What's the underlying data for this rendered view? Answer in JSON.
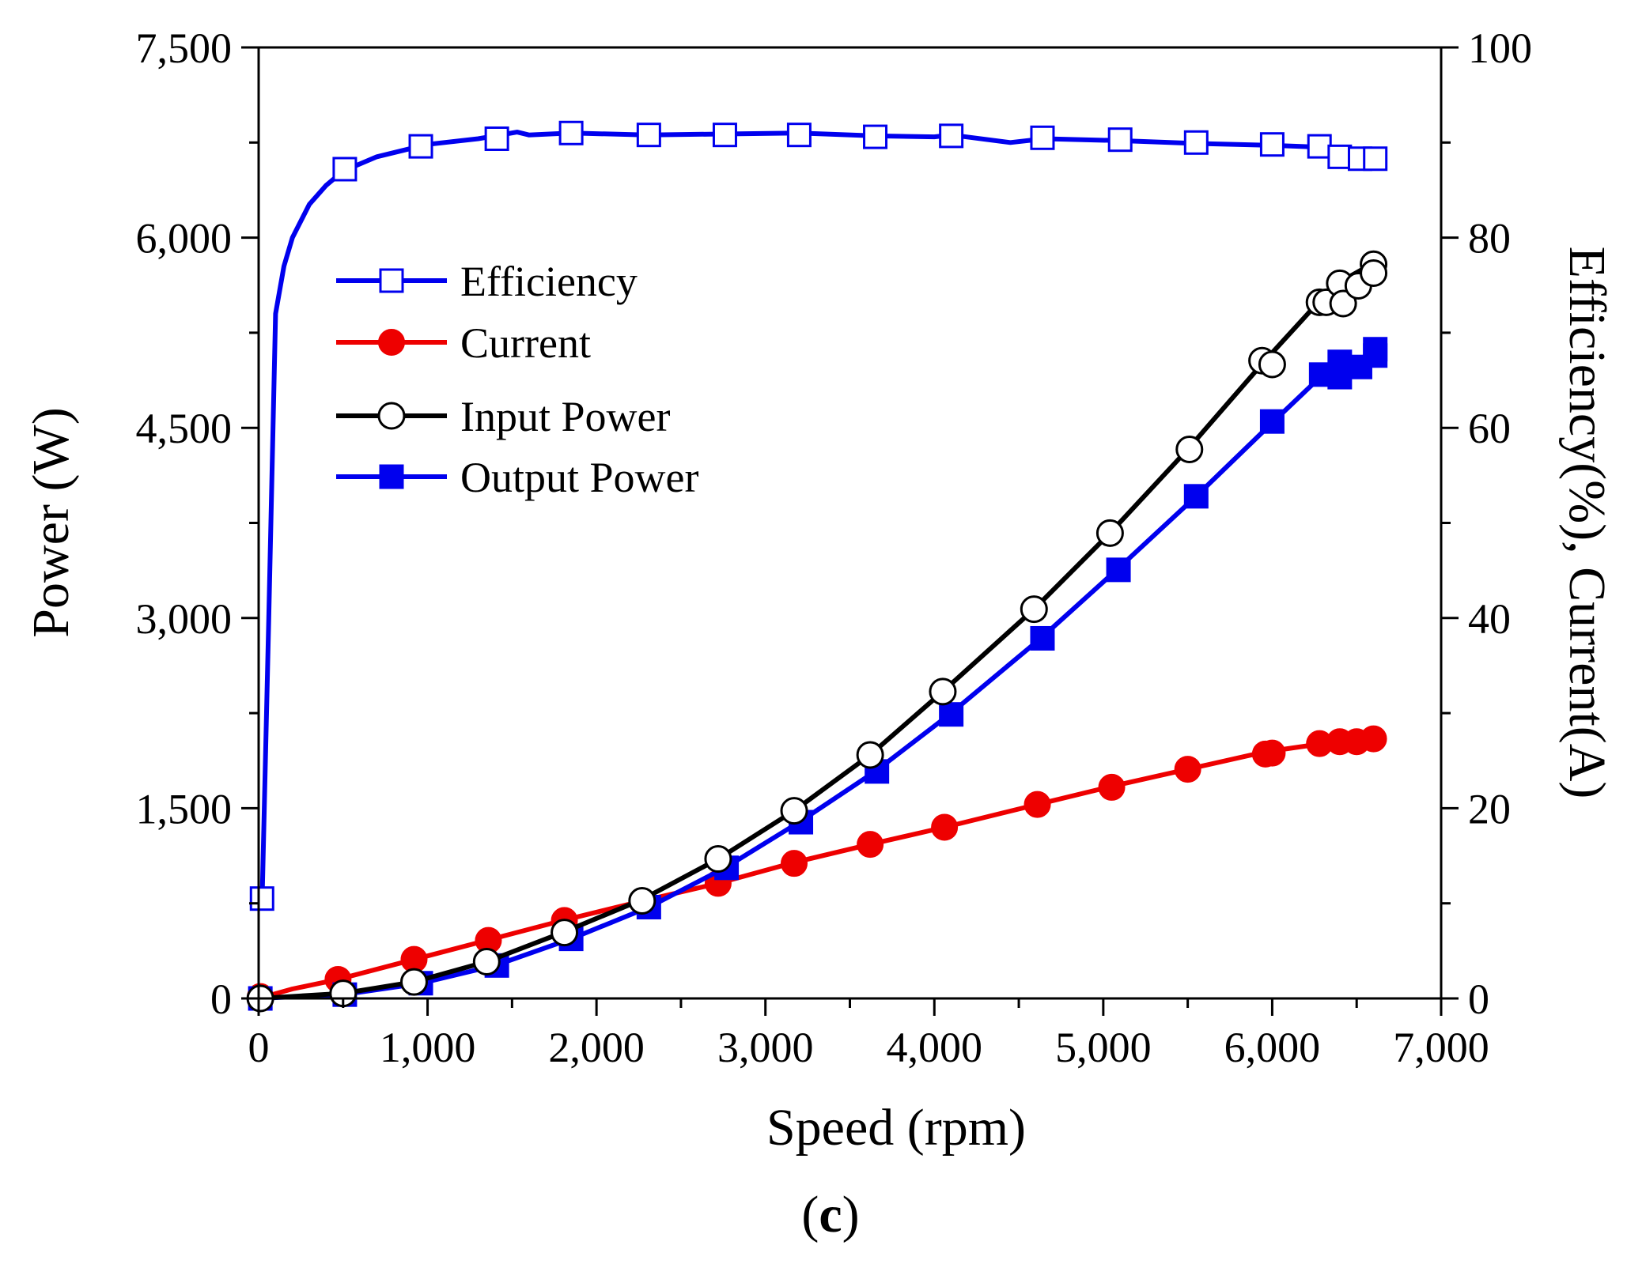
{
  "chart_data": {
    "type": "line",
    "panel_label": "c",
    "xlabel": "Speed (rpm)",
    "ylabel_left": "Power (W)",
    "ylabel_right": "Efficiency(%), Current(A)",
    "xlim": [
      0,
      7000
    ],
    "ylim_left": [
      0,
      7500
    ],
    "ylim_right": [
      0,
      100
    ],
    "x_ticks": [
      "0",
      "1,000",
      "2,000",
      "3,000",
      "4,000",
      "5,000",
      "6,000",
      "7,000"
    ],
    "y_left_ticks": [
      "0",
      "1,500",
      "3,000",
      "4,500",
      "6,000",
      "7,500"
    ],
    "y_right_ticks": [
      "0",
      "20",
      "40",
      "60",
      "80",
      "100"
    ],
    "legend_position": "upper-left",
    "series": [
      {
        "name": "Efficiency",
        "axis": "right",
        "color": "#0000ee",
        "marker": "open-square",
        "curve": [
          [
            20,
            10
          ],
          [
            60,
            40
          ],
          [
            100,
            72
          ],
          [
            150,
            77
          ],
          [
            200,
            80
          ],
          [
            300,
            83.5
          ],
          [
            400,
            85.5
          ],
          [
            500,
            87
          ],
          [
            700,
            88.5
          ],
          [
            1000,
            89.8
          ],
          [
            1300,
            90.4
          ],
          [
            1530,
            91.1
          ],
          [
            1600,
            90.8
          ],
          [
            1850,
            91.0
          ],
          [
            2300,
            90.8
          ],
          [
            2750,
            90.9
          ],
          [
            3200,
            91.0
          ],
          [
            3650,
            90.7
          ],
          [
            4000,
            90.6
          ],
          [
            4100,
            90.8
          ],
          [
            4450,
            90.0
          ],
          [
            4650,
            90.4
          ],
          [
            5100,
            90.2
          ],
          [
            5550,
            89.9
          ],
          [
            6000,
            89.7
          ],
          [
            6300,
            89.5
          ],
          [
            6400,
            88.8
          ],
          [
            6500,
            88.7
          ],
          [
            6600,
            88.4
          ]
        ],
        "markers": [
          [
            20,
            10.5
          ],
          [
            510,
            87.2
          ],
          [
            960,
            89.6
          ],
          [
            1410,
            90.4
          ],
          [
            1850,
            91.0
          ],
          [
            2310,
            90.8
          ],
          [
            2760,
            90.8
          ],
          [
            3200,
            90.8
          ],
          [
            3650,
            90.6
          ],
          [
            4100,
            90.7
          ],
          [
            4640,
            90.5
          ],
          [
            5100,
            90.3
          ],
          [
            5550,
            90.0
          ],
          [
            6000,
            89.8
          ],
          [
            6280,
            89.6
          ],
          [
            6400,
            88.5
          ],
          [
            6520,
            88.3
          ],
          [
            6610,
            88.3
          ]
        ]
      },
      {
        "name": "Current",
        "axis": "right",
        "color": "#ee0000",
        "marker": "filled-circle",
        "curve": [
          [
            0,
            0
          ],
          [
            200,
            1.0
          ],
          [
            470,
            2.0
          ],
          [
            920,
            4.1
          ],
          [
            1350,
            6.1
          ],
          [
            1800,
            8.2
          ],
          [
            2260,
            10.2
          ],
          [
            2720,
            12.1
          ],
          [
            3170,
            14.3
          ],
          [
            3620,
            16.2
          ],
          [
            4060,
            18.0
          ],
          [
            4610,
            20.4
          ],
          [
            5050,
            22.3
          ],
          [
            5500,
            24.1
          ],
          [
            5950,
            25.9
          ],
          [
            6300,
            26.8
          ],
          [
            6400,
            27.0
          ],
          [
            6600,
            27.3
          ]
        ],
        "markers": [
          [
            10,
            0.2
          ],
          [
            470,
            2.0
          ],
          [
            920,
            4.1
          ],
          [
            1360,
            6.1
          ],
          [
            1810,
            8.2
          ],
          [
            2270,
            10.2
          ],
          [
            2720,
            12.1
          ],
          [
            3170,
            14.2
          ],
          [
            3620,
            16.2
          ],
          [
            4060,
            18.0
          ],
          [
            4610,
            20.4
          ],
          [
            5050,
            22.2
          ],
          [
            5500,
            24.1
          ],
          [
            5960,
            25.7
          ],
          [
            6000,
            25.8
          ],
          [
            6280,
            26.8
          ],
          [
            6400,
            27.0
          ],
          [
            6500,
            27.0
          ],
          [
            6600,
            27.3
          ]
        ]
      },
      {
        "name": "Input Power",
        "axis": "left",
        "color": "#000000",
        "marker": "open-circle",
        "curve": [
          [
            0,
            0
          ],
          [
            500,
            40
          ],
          [
            920,
            130
          ],
          [
            1350,
            290
          ],
          [
            1800,
            520
          ],
          [
            2270,
            780
          ],
          [
            2720,
            1100
          ],
          [
            3170,
            1480
          ],
          [
            3620,
            1920
          ],
          [
            4050,
            2420
          ],
          [
            4590,
            3070
          ],
          [
            5040,
            3670
          ],
          [
            5500,
            4330
          ],
          [
            5950,
            5020
          ],
          [
            6280,
            5500
          ],
          [
            6400,
            5650
          ],
          [
            6600,
            5800
          ]
        ],
        "markers": [
          [
            10,
            0
          ],
          [
            500,
            40
          ],
          [
            920,
            130
          ],
          [
            1350,
            290
          ],
          [
            1810,
            520
          ],
          [
            2270,
            770
          ],
          [
            2720,
            1100
          ],
          [
            3170,
            1480
          ],
          [
            3620,
            1920
          ],
          [
            4050,
            2420
          ],
          [
            4590,
            3070
          ],
          [
            5040,
            3670
          ],
          [
            5510,
            4330
          ],
          [
            5940,
            5030
          ],
          [
            6000,
            5000
          ],
          [
            6280,
            5490
          ],
          [
            6320,
            5490
          ],
          [
            6400,
            5640
          ],
          [
            6420,
            5480
          ],
          [
            6510,
            5620
          ],
          [
            6600,
            5790
          ],
          [
            6600,
            5720
          ]
        ]
      },
      {
        "name": "Output Power",
        "axis": "left",
        "color": "#0000ee",
        "marker": "filled-square",
        "curve": [
          [
            0,
            0
          ],
          [
            500,
            30
          ],
          [
            960,
            120
          ],
          [
            1400,
            260
          ],
          [
            1850,
            470
          ],
          [
            2310,
            720
          ],
          [
            2760,
            1030
          ],
          [
            3200,
            1390
          ],
          [
            3650,
            1790
          ],
          [
            4090,
            2240
          ],
          [
            4630,
            2840
          ],
          [
            5080,
            3380
          ],
          [
            5550,
            3960
          ],
          [
            6000,
            4540
          ],
          [
            6300,
            4920
          ],
          [
            6400,
            4960
          ],
          [
            6600,
            5100
          ]
        ],
        "markers": [
          [
            10,
            0
          ],
          [
            510,
            30
          ],
          [
            960,
            120
          ],
          [
            1410,
            260
          ],
          [
            1850,
            470
          ],
          [
            2310,
            720
          ],
          [
            2770,
            1030
          ],
          [
            3210,
            1390
          ],
          [
            3660,
            1790
          ],
          [
            4100,
            2240
          ],
          [
            4640,
            2840
          ],
          [
            5090,
            3380
          ],
          [
            5550,
            3960
          ],
          [
            6000,
            4550
          ],
          [
            6290,
            4920
          ],
          [
            6400,
            5020
          ],
          [
            6400,
            4900
          ],
          [
            6520,
            4980
          ],
          [
            6610,
            5120
          ],
          [
            6610,
            5070
          ]
        ]
      }
    ]
  }
}
